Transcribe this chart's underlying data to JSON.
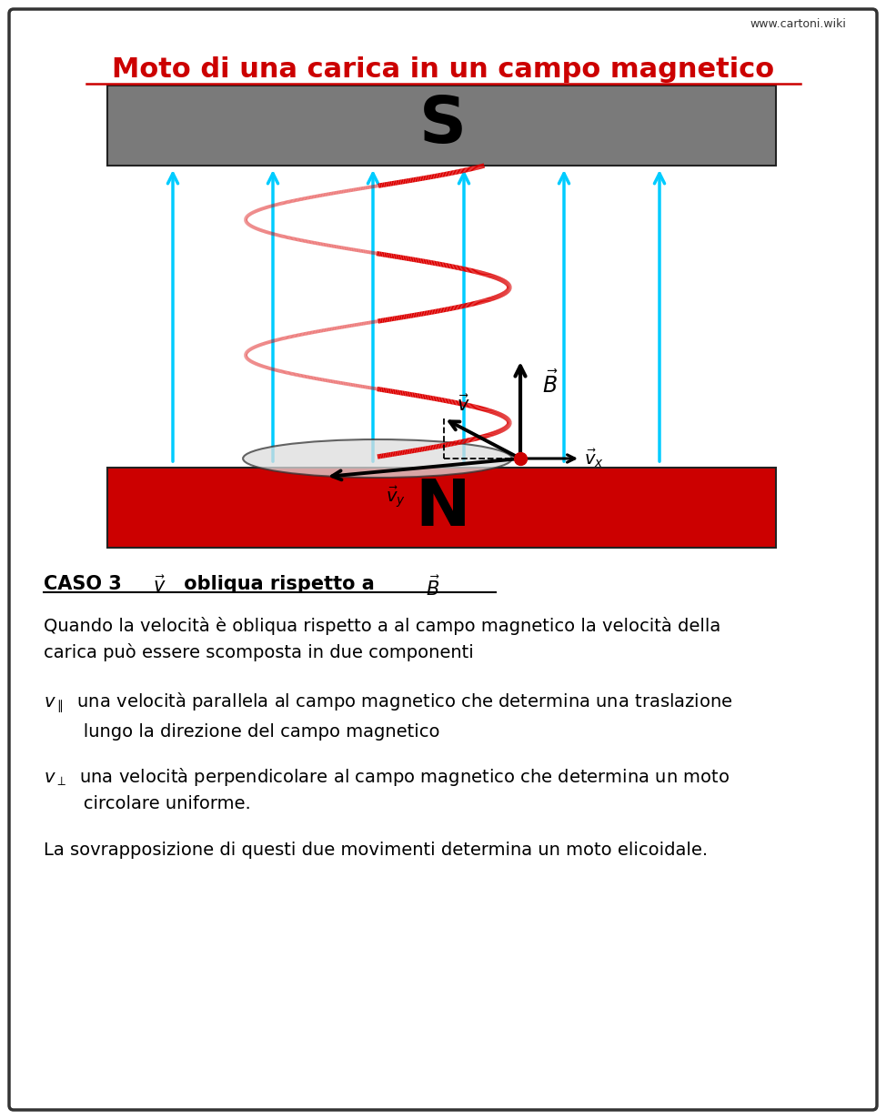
{
  "title": "Moto di una carica in un campo magnetico",
  "watermark": "www.cartoni.wiki",
  "bg_color": "#ffffff",
  "border_color": "#333333",
  "S_bar_color": "#7a7a7a",
  "N_bar_color": "#cc0000",
  "S_text": "S",
  "N_text": "N",
  "helix_color": "#dd0000",
  "arrow_color": "#00ccff"
}
